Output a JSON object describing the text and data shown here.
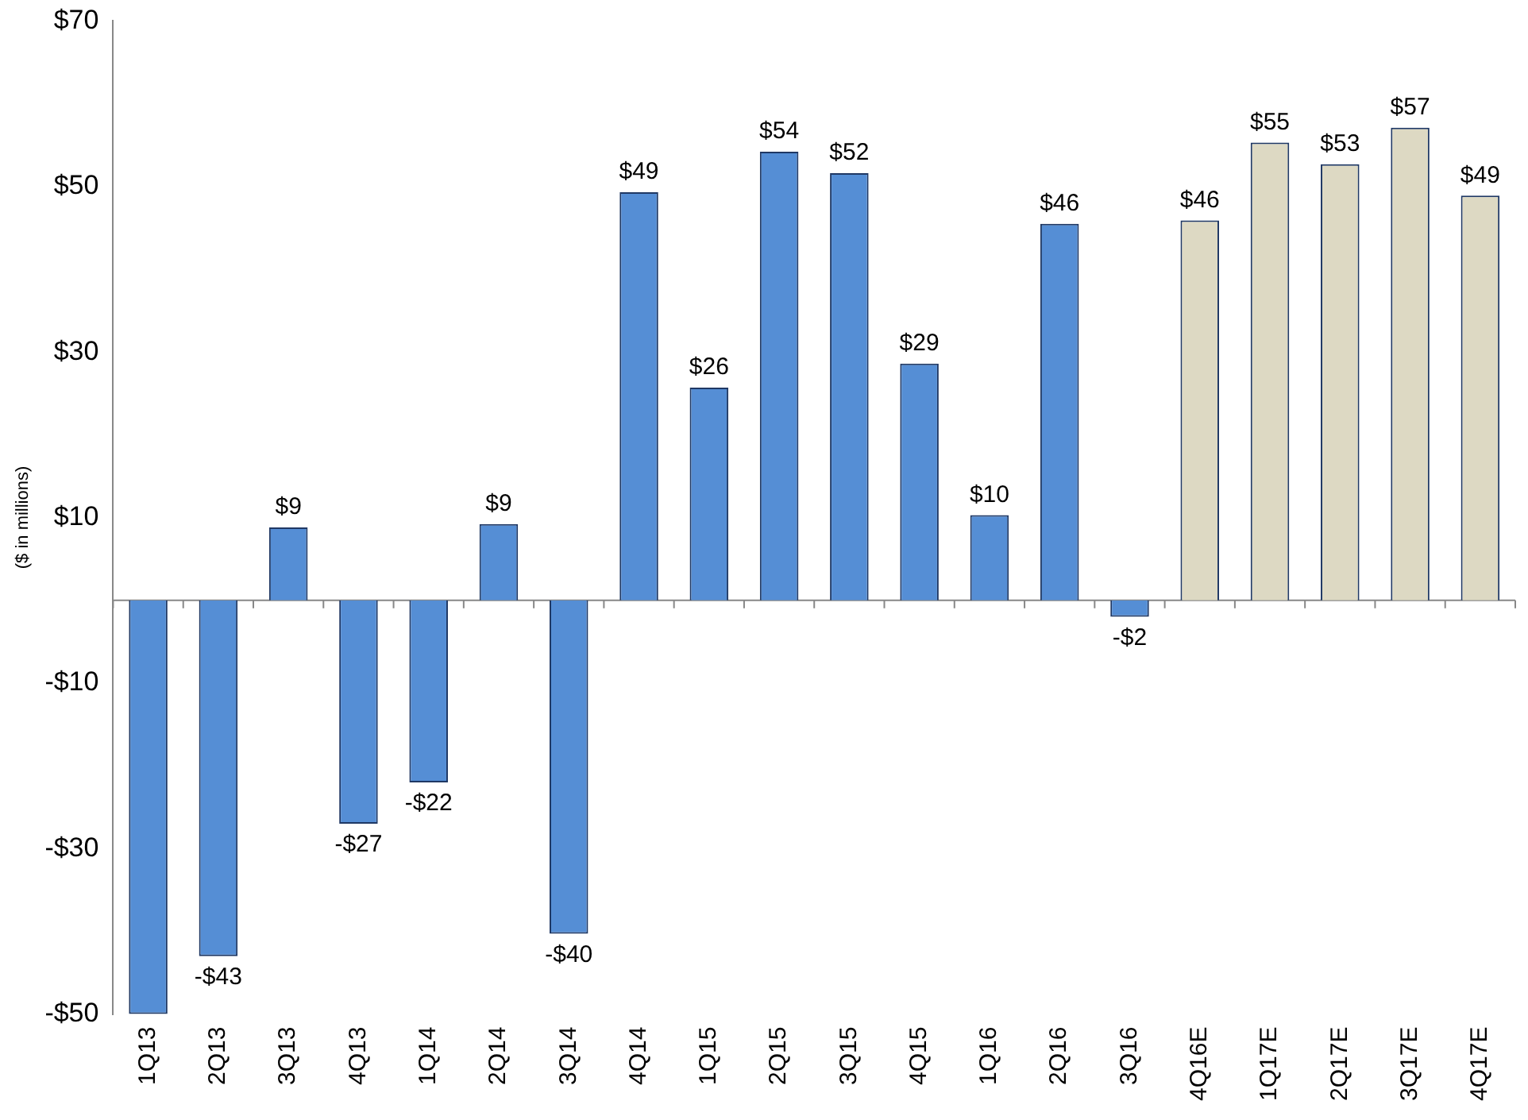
{
  "chart_data": {
    "type": "bar",
    "ylabel": "($ in millions)",
    "categories": [
      "1Q13",
      "2Q13",
      "3Q13",
      "4Q13",
      "1Q14",
      "2Q14",
      "3Q14",
      "4Q14",
      "1Q15",
      "2Q15",
      "3Q15",
      "4Q15",
      "1Q16",
      "2Q16",
      "3Q16",
      "4Q16E",
      "1Q17E",
      "2Q17E",
      "3Q17E",
      "4Q17E"
    ],
    "values": [
      -50,
      -43,
      8.8,
      -27,
      -22,
      9.2,
      -40.3,
      49.3,
      25.7,
      54.2,
      51.6,
      28.6,
      10.3,
      45.5,
      -2,
      45.9,
      55.3,
      52.7,
      57.1,
      48.9
    ],
    "value_labels": [
      null,
      "-$43",
      "$9",
      "-$27",
      "-$22",
      "$9",
      "-$40",
      "$49",
      "$26",
      "$54",
      "$52",
      "$29",
      "$10",
      "$46",
      "-$2",
      "$46",
      "$55",
      "$53",
      "$57",
      "$49"
    ],
    "colors": [
      "#558ed5",
      "#558ed5",
      "#558ed5",
      "#558ed5",
      "#558ed5",
      "#558ed5",
      "#558ed5",
      "#558ed5",
      "#558ed5",
      "#558ed5",
      "#558ed5",
      "#558ed5",
      "#558ed5",
      "#558ed5",
      "#558ed5",
      "#ddd9c3",
      "#ddd9c3",
      "#ddd9c3",
      "#ddd9c3",
      "#ddd9c3"
    ],
    "ylim": [
      -50,
      70
    ],
    "yticks": [
      {
        "value": -50,
        "label": "-$50"
      },
      {
        "value": -30,
        "label": "-$30"
      },
      {
        "value": -10,
        "label": "-$10"
      },
      {
        "value": 10,
        "label": "$10"
      },
      {
        "value": 30,
        "label": "$30"
      },
      {
        "value": 50,
        "label": "$50"
      },
      {
        "value": 70,
        "label": "$70"
      }
    ],
    "grid": false,
    "legend": false
  }
}
